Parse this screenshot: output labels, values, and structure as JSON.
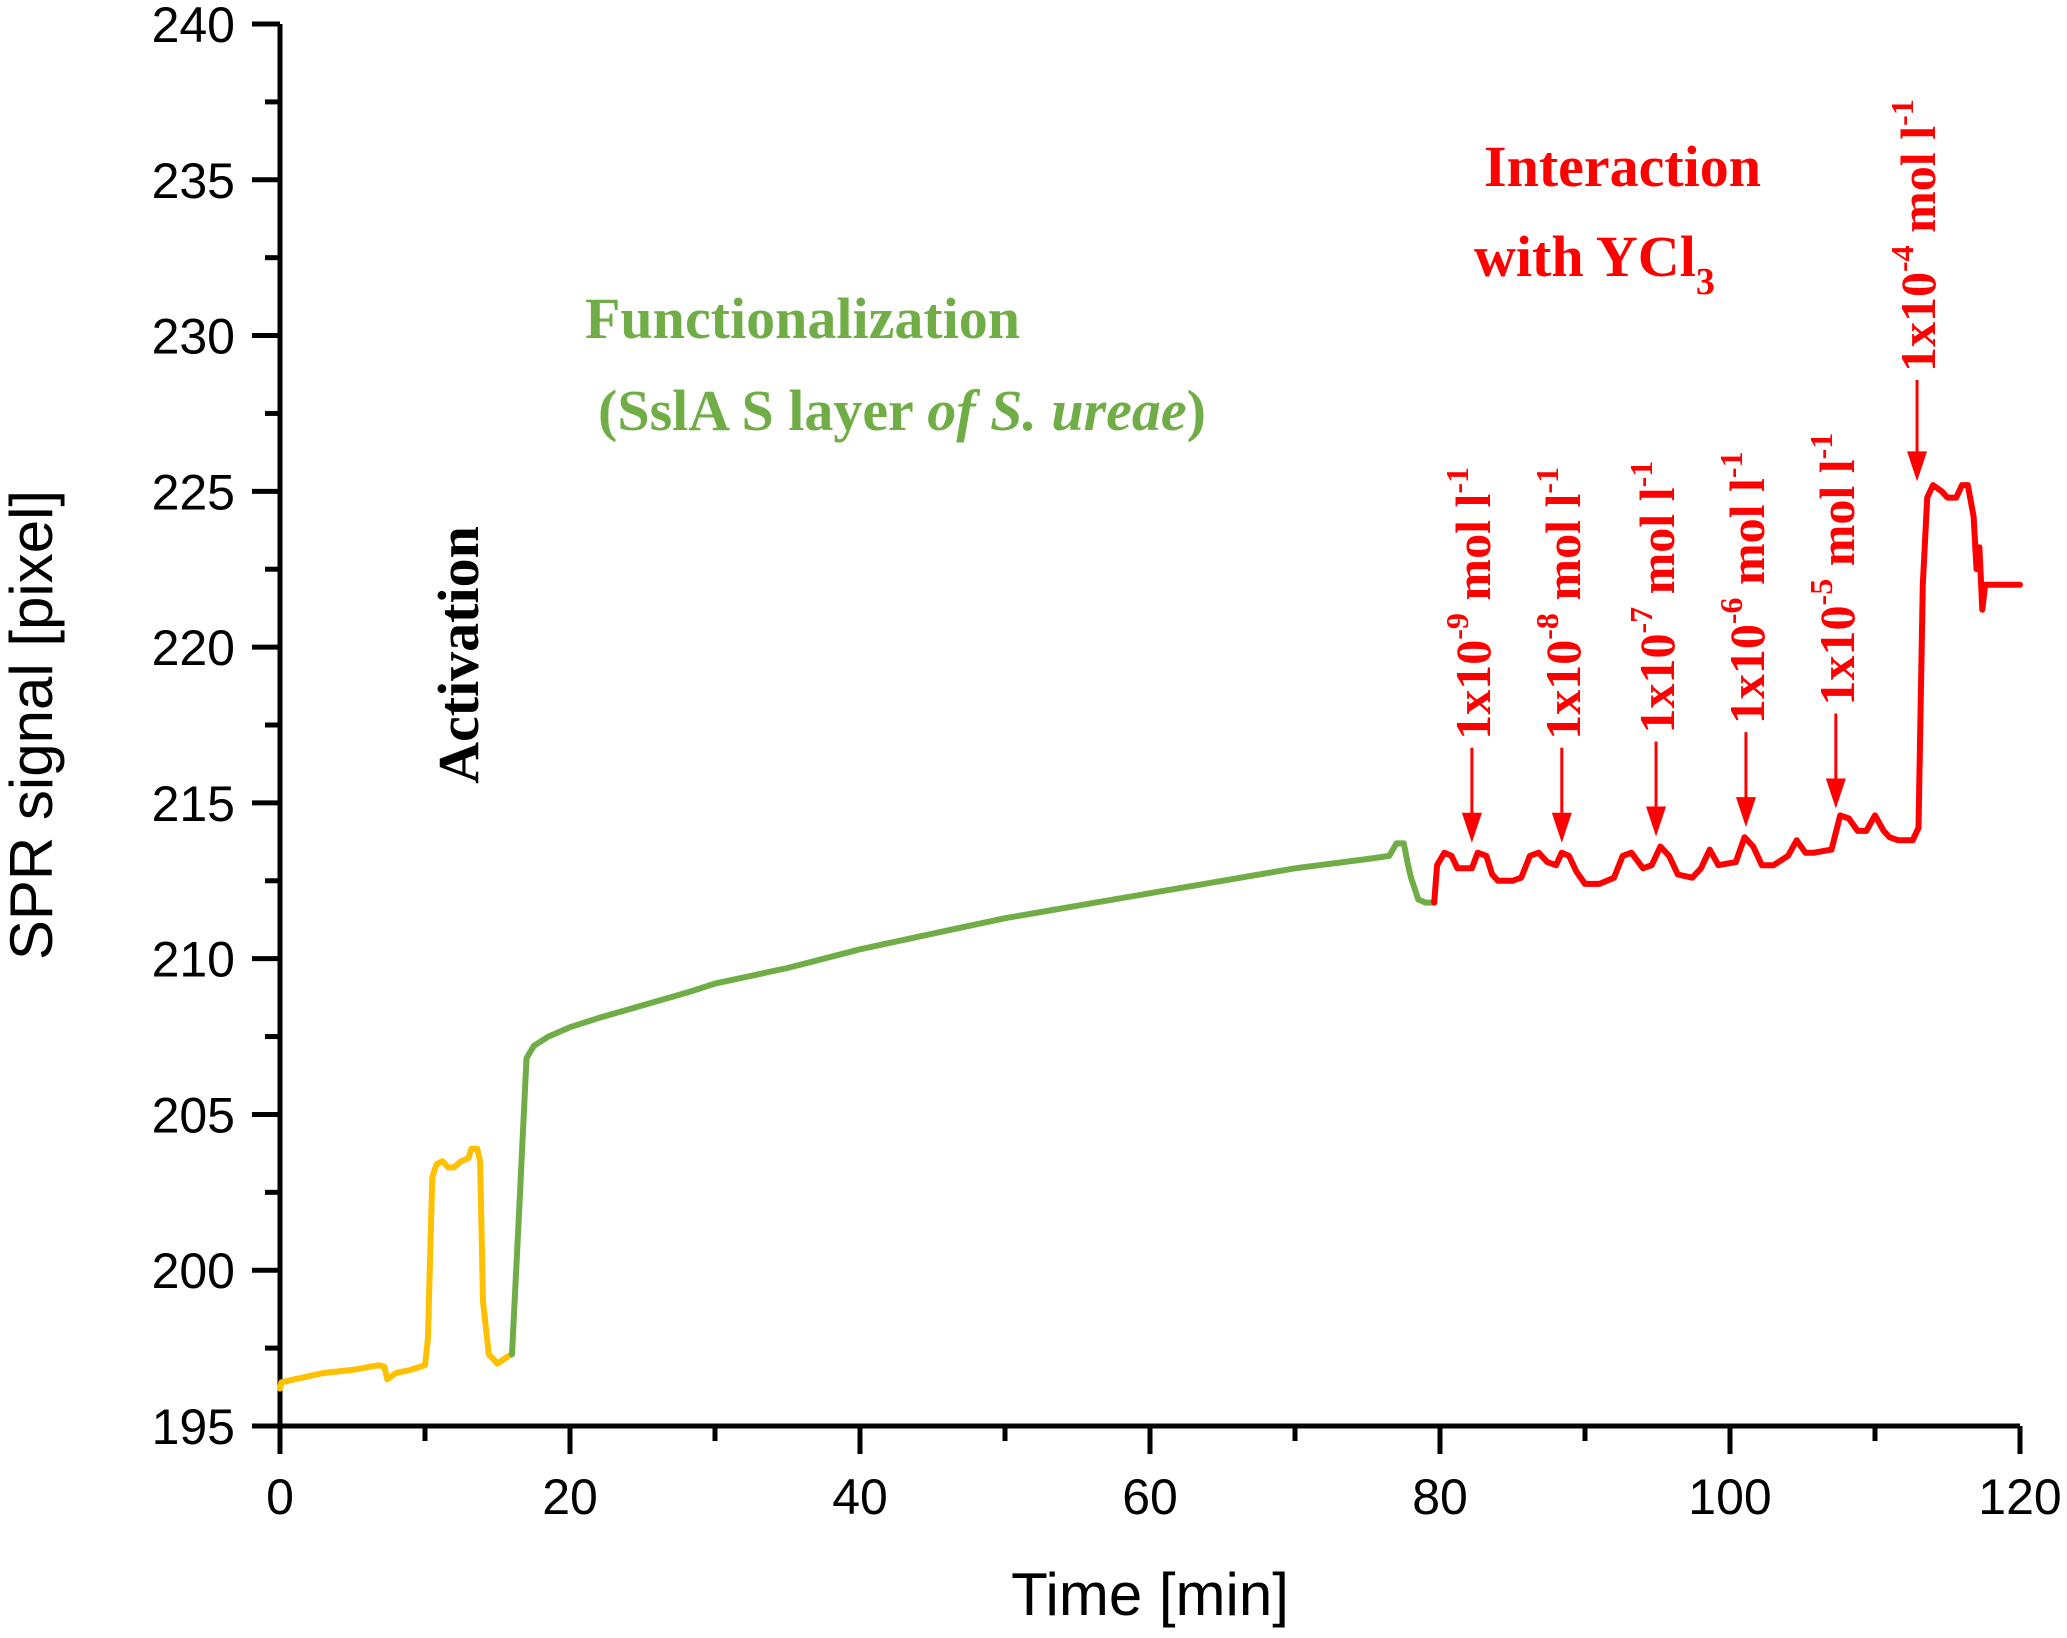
{
  "chart_data": {
    "type": "line",
    "title": "",
    "xlabel": "Time [min]",
    "ylabel": "SPR signal [pixel]",
    "xlim": [
      0,
      120
    ],
    "ylim": [
      195,
      240
    ],
    "x_ticks": [
      0,
      20,
      40,
      60,
      80,
      100,
      120
    ],
    "x_tick_labels": [
      "0",
      "20",
      "40",
      "60",
      "80",
      "100",
      "120"
    ],
    "x_minor_ticks": [
      10,
      30,
      50,
      70,
      90,
      110
    ],
    "y_ticks": [
      195,
      200,
      205,
      210,
      215,
      220,
      225,
      230,
      235,
      240
    ],
    "y_tick_labels": [
      "195",
      "200",
      "205",
      "210",
      "215",
      "220",
      "225",
      "230",
      "235",
      "240"
    ],
    "y_minor_ticks": [
      197.5,
      202.5,
      207.5,
      212.5,
      217.5,
      222.5,
      227.5,
      232.5,
      237.5
    ],
    "grid": false,
    "legend": "none",
    "series": [
      {
        "name": "Activation",
        "color": "#FFC000",
        "x": [
          0,
          0.1,
          1,
          3,
          5,
          6.8,
          7.2,
          7.4,
          8,
          9,
          10,
          10.2,
          10.5,
          10.8,
          11.2,
          11.6,
          12,
          12.5,
          13,
          13.2,
          13.6,
          13.8,
          14,
          14.4,
          15,
          15.6,
          16.0
        ],
        "y": [
          196.2,
          196.4,
          196.5,
          196.7,
          196.8,
          196.95,
          196.9,
          196.5,
          196.7,
          196.8,
          196.95,
          197.8,
          203.0,
          203.4,
          203.5,
          203.3,
          203.3,
          203.5,
          203.6,
          203.9,
          203.9,
          203.5,
          199.0,
          197.3,
          197.0,
          197.2,
          197.3
        ]
      },
      {
        "name": "Functionalization (SslA S layer of S. ureae)",
        "color": "#70AD47",
        "x": [
          16.0,
          16.5,
          17.0,
          17.5,
          18.5,
          20,
          22,
          25,
          28,
          30,
          35,
          40,
          45,
          50,
          55,
          60,
          65,
          70,
          75,
          76.5,
          77.0,
          77.5,
          77.8,
          78.0,
          78.5,
          79.0,
          79.6
        ],
        "y": [
          197.3,
          202.0,
          206.8,
          207.2,
          207.5,
          207.8,
          208.1,
          208.5,
          208.9,
          209.2,
          209.7,
          210.3,
          210.8,
          211.3,
          211.7,
          212.1,
          212.5,
          212.9,
          213.2,
          213.3,
          213.7,
          213.7,
          213.0,
          212.6,
          211.9,
          211.8,
          211.8
        ]
      },
      {
        "name": "Interaction with YCl3",
        "color": "#FF0000",
        "x": [
          79.6,
          79.8,
          80.3,
          80.8,
          81.2,
          81.8,
          82.2,
          82.6,
          83.2,
          83.6,
          84.0,
          85.0,
          85.6,
          86.2,
          86.8,
          87.4,
          88.0,
          88.4,
          88.9,
          89.4,
          90.0,
          91.0,
          92.0,
          92.6,
          93.2,
          94.0,
          94.6,
          95.2,
          95.8,
          96.4,
          97.4,
          98.0,
          98.6,
          99.2,
          100.4,
          101.0,
          101.6,
          102.2,
          103.0,
          104.0,
          104.6,
          105.2,
          105.8,
          107.0,
          107.6,
          108.2,
          108.8,
          109.4,
          110.0,
          110.6,
          111.0,
          111.6,
          112.6,
          113.0,
          113.3,
          113.6,
          114.0,
          114.6,
          115.0,
          115.6,
          116.0,
          116.4,
          116.8,
          117.0,
          117.2,
          117.4,
          117.6,
          118.0,
          120.0
        ],
        "y": [
          211.8,
          213.0,
          213.4,
          213.3,
          212.9,
          212.9,
          212.9,
          213.4,
          213.3,
          212.7,
          212.5,
          212.5,
          212.6,
          213.3,
          213.4,
          213.1,
          213.0,
          213.4,
          213.3,
          212.8,
          212.4,
          212.4,
          212.6,
          213.3,
          213.4,
          212.9,
          213.0,
          213.6,
          213.3,
          212.7,
          212.6,
          212.9,
          213.5,
          213.0,
          213.1,
          213.9,
          213.6,
          213.0,
          213.0,
          213.3,
          213.8,
          213.4,
          213.4,
          213.5,
          214.6,
          214.5,
          214.1,
          214.1,
          214.6,
          214.1,
          213.9,
          213.8,
          213.8,
          214.2,
          222.0,
          224.8,
          225.2,
          225.0,
          224.8,
          224.8,
          225.2,
          225.2,
          224.2,
          222.5,
          223.2,
          221.2,
          222.0,
          222.0,
          222.0
        ]
      }
    ],
    "annotations": {
      "activation": {
        "text": "Activation",
        "color": "#000000",
        "orientation": "vertical"
      },
      "functionalization": {
        "line1": "Functionalization",
        "line2_prefix": "(SslA S layer ",
        "line2_italic": "of S. ureae",
        "line2_suffix": ")",
        "color": "#70AD47"
      },
      "interaction": {
        "line1": "Interaction",
        "line2": "with YCl",
        "line2_subscript": "3",
        "color": "#FF0000"
      },
      "concentrations": [
        {
          "base": "1x10",
          "exp": "-9",
          "unit": "mol l",
          "unit_exp": "-1",
          "arrow_x": 82.2,
          "arrow_tip_y": 213.4
        },
        {
          "base": "1x10",
          "exp": "-8",
          "unit": "mol l",
          "unit_exp": "-1",
          "arrow_x": 88.4,
          "arrow_tip_y": 213.4
        },
        {
          "base": "1x10",
          "exp": "-7",
          "unit": "mol l",
          "unit_exp": "-1",
          "arrow_x": 94.9,
          "arrow_tip_y": 213.6
        },
        {
          "base": "1x10",
          "exp": "-6",
          "unit": "mol l",
          "unit_exp": "-1",
          "arrow_x": 101.1,
          "arrow_tip_y": 213.9
        },
        {
          "base": "1x10",
          "exp": "-5",
          "unit": "mol l",
          "unit_exp": "-1",
          "arrow_x": 107.3,
          "arrow_tip_y": 214.5
        },
        {
          "base": "1x10",
          "exp": "-4",
          "unit": "mol l",
          "unit_exp": "-1",
          "arrow_x": 112.9,
          "arrow_tip_y": 225.0
        }
      ]
    }
  }
}
